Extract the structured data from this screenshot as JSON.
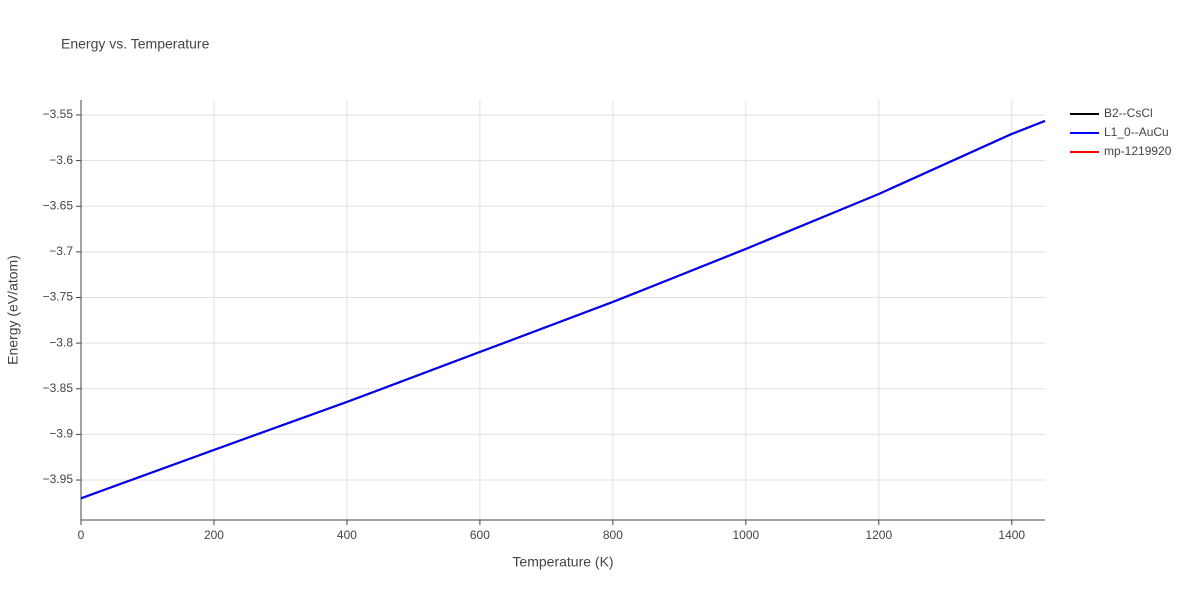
{
  "chart_data": {
    "type": "line",
    "title": "Energy vs. Temperature",
    "x_label": "Temperature (K)",
    "y_label": "Energy (eV/atom)",
    "x": [
      0,
      200,
      400,
      600,
      800,
      1000,
      1200,
      1400,
      1450
    ],
    "series": [
      {
        "name": "B2--CsCl",
        "color": "#000000",
        "values": [
          -3.97,
          -3.917,
          -3.8645,
          -3.8097,
          -3.7549,
          -3.6968,
          -3.6366,
          -3.5708,
          -3.5566
        ]
      },
      {
        "name": "L1_0--AuCu",
        "color": "#0000ff",
        "values": [
          -3.97,
          -3.917,
          -3.8645,
          -3.8097,
          -3.7549,
          -3.6968,
          -3.6366,
          -3.5708,
          -3.5566
        ]
      },
      {
        "name": "mp-1219920",
        "color": "#ff0000",
        "values": [
          -3.97,
          -3.917,
          -3.8645,
          -3.8097,
          -3.7549,
          -3.6968,
          -3.6366,
          -3.5708,
          -3.5566
        ]
      }
    ],
    "draw_order": [
      2,
      0,
      1
    ],
    "xlim": [
      0,
      1450
    ],
    "xticks": [
      0,
      200,
      400,
      600,
      800,
      1000,
      1200,
      1400
    ],
    "ylim": [
      -3.9938,
      -3.5336
    ],
    "yticks": [
      {
        "value": -3.95,
        "label": "−3.95"
      },
      {
        "value": -3.9,
        "label": "−3.9"
      },
      {
        "value": -3.85,
        "label": "−3.85"
      },
      {
        "value": -3.8,
        "label": "−3.8"
      },
      {
        "value": -3.75,
        "label": "−3.75"
      },
      {
        "value": -3.7,
        "label": "−3.7"
      },
      {
        "value": -3.65,
        "label": "−3.65"
      },
      {
        "value": -3.6,
        "label": "−3.6"
      },
      {
        "value": -3.55,
        "label": "−3.55"
      }
    ],
    "grid": true,
    "legend": "top-right"
  }
}
